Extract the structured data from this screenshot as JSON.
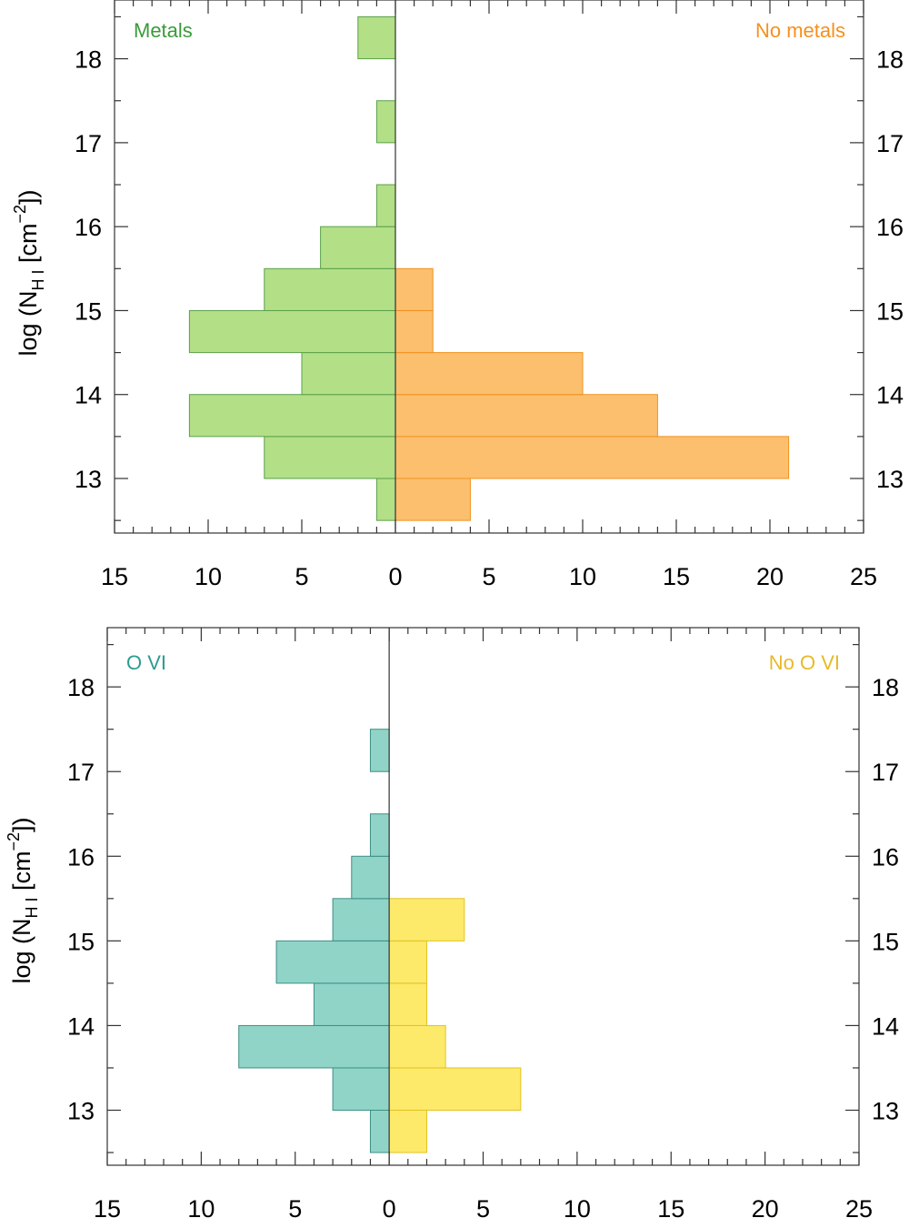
{
  "chart_data": [
    {
      "type": "bar",
      "orientation": "horizontal-back-to-back",
      "ylabel": {
        "main": "log (N",
        "sub": "H I",
        "unit": " [cm",
        "sup": "−2",
        "close": "])"
      },
      "xlim": [
        -15,
        25
      ],
      "ylim": [
        12.35,
        18.7
      ],
      "x_ticks": [
        -15,
        -10,
        -5,
        0,
        5,
        10,
        15,
        20,
        25
      ],
      "x_tick_labels": [
        "15",
        "10",
        "5",
        "0",
        "5",
        "10",
        "15",
        "20",
        "25"
      ],
      "y_ticks": [
        13,
        14,
        15,
        16,
        17,
        18
      ],
      "y_tick_labels": [
        "13",
        "14",
        "15",
        "16",
        "17",
        "18"
      ],
      "bin_width": 0.5,
      "bin_edges": [
        12.5,
        13.0,
        13.5,
        14.0,
        14.5,
        15.0,
        15.5,
        16.0,
        16.5,
        17.0,
        17.5,
        18.0,
        18.5
      ],
      "series": [
        {
          "name": "Metals",
          "side": "left",
          "color": "#b3df87",
          "edge": "#5aa14b",
          "label_color": "#3a9a3a",
          "values": [
            1,
            7,
            11,
            5,
            11,
            7,
            4,
            1,
            0,
            1,
            0,
            2
          ]
        },
        {
          "name": "No metals",
          "side": "right",
          "color": "#fbbf6e",
          "edge": "#f0921e",
          "label_color": "#f5901e",
          "values": [
            4,
            21,
            14,
            10,
            2,
            2,
            0,
            0,
            0,
            0,
            0,
            0
          ]
        }
      ]
    },
    {
      "type": "bar",
      "orientation": "horizontal-back-to-back",
      "ylabel": {
        "main": "log (N",
        "sub": "H I",
        "unit": " [cm",
        "sup": "−2",
        "close": "])"
      },
      "xlim": [
        -15,
        25
      ],
      "ylim": [
        12.35,
        18.7
      ],
      "x_ticks": [
        -15,
        -10,
        -5,
        0,
        5,
        10,
        15,
        20,
        25
      ],
      "x_tick_labels": [
        "15",
        "10",
        "5",
        "0",
        "5",
        "10",
        "15",
        "20",
        "25"
      ],
      "y_ticks": [
        13,
        14,
        15,
        16,
        17,
        18
      ],
      "y_tick_labels": [
        "13",
        "14",
        "15",
        "16",
        "17",
        "18"
      ],
      "bin_width": 0.5,
      "bin_edges": [
        12.5,
        13.0,
        13.5,
        14.0,
        14.5,
        15.0,
        15.5,
        16.0,
        16.5,
        17.0,
        17.5,
        18.0,
        18.5
      ],
      "series": [
        {
          "name": "O VI",
          "side": "left",
          "color": "#8fd4c7",
          "edge": "#3f8f86",
          "label_color": "#2d9c92",
          "values": [
            1,
            3,
            8,
            4,
            6,
            3,
            2,
            1,
            0,
            1,
            0,
            0
          ]
        },
        {
          "name": "No O VI",
          "side": "right",
          "color": "#fde96a",
          "edge": "#e3c322",
          "label_color": "#e8b92a",
          "values": [
            2,
            7,
            3,
            2,
            2,
            4,
            0,
            0,
            0,
            0,
            0,
            0
          ]
        }
      ]
    }
  ]
}
